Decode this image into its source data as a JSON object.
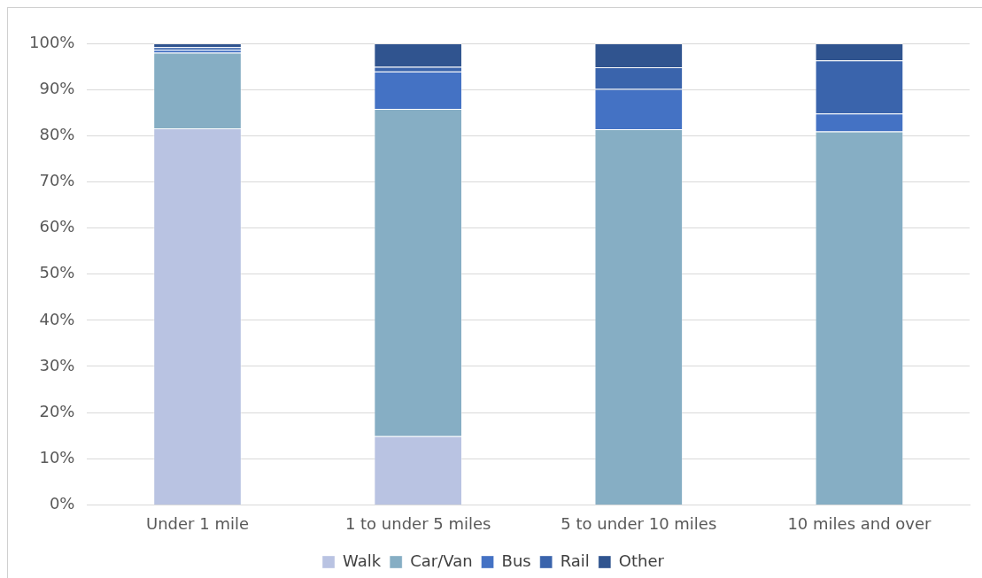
{
  "chart_data": {
    "type": "bar",
    "stacked": true,
    "categories": [
      "Under 1 mile",
      "1 to under 5 miles",
      "5 to under 10 miles",
      "10 miles and over"
    ],
    "series": [
      {
        "name": "Walk",
        "color": "#b9c3e2",
        "values": [
          81.6,
          14.9,
          0,
          0
        ]
      },
      {
        "name": "Car/Van",
        "color": "#86aec4",
        "values": [
          16.4,
          70.9,
          81.4,
          80.9
        ]
      },
      {
        "name": "Bus",
        "color": "#4472c4",
        "values": [
          0.6,
          8.1,
          8.7,
          3.9
        ]
      },
      {
        "name": "Rail",
        "color": "#3a64ac",
        "values": [
          0.6,
          1.0,
          4.7,
          11.5
        ]
      },
      {
        "name": "Other",
        "color": "#30548f",
        "values": [
          0.8,
          5.1,
          5.2,
          3.7
        ]
      }
    ],
    "ylim": [
      0,
      100
    ],
    "yticks": [
      {
        "value": 0,
        "label": "0%"
      },
      {
        "value": 10,
        "label": "10%"
      },
      {
        "value": 20,
        "label": "20%"
      },
      {
        "value": 30,
        "label": "30%"
      },
      {
        "value": 40,
        "label": "40%"
      },
      {
        "value": 50,
        "label": "50%"
      },
      {
        "value": 60,
        "label": "60%"
      },
      {
        "value": 70,
        "label": "70%"
      },
      {
        "value": 80,
        "label": "80%"
      },
      {
        "value": 90,
        "label": "90%"
      },
      {
        "value": 100,
        "label": "100%"
      }
    ],
    "grid": "y",
    "legend": "bottom"
  }
}
